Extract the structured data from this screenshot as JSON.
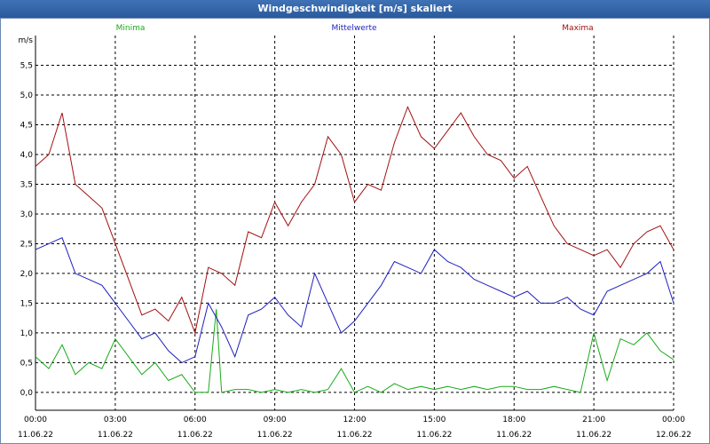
{
  "window": {
    "title": "Windgeschwindigkeit [m/s] skaliert"
  },
  "chart_data": {
    "type": "line",
    "title": "Windgeschwindigkeit [m/s] skaliert",
    "ylabel": "m/s",
    "xlabel": "",
    "ylim": [
      -0.3,
      6.0
    ],
    "xlim": [
      0,
      24
    ],
    "grid": true,
    "legend_position": "top",
    "y_ticks": [
      0.0,
      0.5,
      1.0,
      1.5,
      2.0,
      2.5,
      3.0,
      3.5,
      4.0,
      4.5,
      5.0,
      5.5
    ],
    "y_tick_labels": [
      "0,0",
      "0,5",
      "1,0",
      "1,5",
      "2,0",
      "2,5",
      "3,0",
      "3,5",
      "4,0",
      "4,5",
      "5,0",
      "5,5"
    ],
    "x_ticks": [
      0,
      3,
      6,
      9,
      12,
      15,
      18,
      21,
      24
    ],
    "x_tick_times": [
      "00:00",
      "03:00",
      "06:00",
      "09:00",
      "12:00",
      "15:00",
      "18:00",
      "21:00",
      "00:00"
    ],
    "x_tick_dates": [
      "11.06.22",
      "11.06.22",
      "11.06.22",
      "11.06.22",
      "11.06.22",
      "11.06.22",
      "11.06.22",
      "11.06.22",
      "12.06.22"
    ],
    "series": [
      {
        "name": "Minima",
        "color": "#1aaa1a",
        "x": [
          0,
          0.5,
          1,
          1.5,
          2,
          2.5,
          3,
          3.5,
          4,
          4.5,
          5,
          5.5,
          6,
          6.5,
          6.8,
          7,
          7.5,
          8,
          8.5,
          9,
          9.5,
          10,
          10.5,
          11,
          11.5,
          12,
          12.5,
          13,
          13.5,
          14,
          14.5,
          15,
          15.5,
          16,
          16.5,
          17,
          17.5,
          18,
          18.5,
          19,
          19.5,
          20,
          20.5,
          21,
          21.5,
          22,
          22.5,
          23,
          23.5,
          24
        ],
        "values": [
          0.6,
          0.4,
          0.8,
          0.3,
          0.5,
          0.4,
          0.9,
          0.6,
          0.3,
          0.5,
          0.2,
          0.3,
          0.0,
          0.0,
          1.4,
          0.0,
          0.05,
          0.05,
          0.0,
          0.05,
          0.0,
          0.05,
          0.0,
          0.05,
          0.4,
          0.0,
          0.1,
          0.0,
          0.15,
          0.05,
          0.1,
          0.05,
          0.1,
          0.05,
          0.1,
          0.05,
          0.1,
          0.1,
          0.05,
          0.05,
          0.1,
          0.05,
          0.0,
          1.0,
          0.2,
          0.9,
          0.8,
          1.0,
          0.7,
          0.55
        ]
      },
      {
        "name": "Mittelwerte",
        "color": "#1f1fc0",
        "x": [
          0,
          0.5,
          1,
          1.5,
          2,
          2.5,
          3,
          3.5,
          4,
          4.5,
          5,
          5.5,
          6,
          6.5,
          7,
          7.5,
          8,
          8.5,
          9,
          9.5,
          10,
          10.5,
          11,
          11.5,
          12,
          12.5,
          13,
          13.5,
          14,
          14.5,
          15,
          15.5,
          16,
          16.5,
          17,
          17.5,
          18,
          18.5,
          19,
          19.5,
          20,
          20.5,
          21,
          21.5,
          22,
          22.5,
          23,
          23.5,
          24
        ],
        "values": [
          2.4,
          2.5,
          2.6,
          2.0,
          1.9,
          1.8,
          1.5,
          1.2,
          0.9,
          1.0,
          0.7,
          0.5,
          0.6,
          1.5,
          1.1,
          0.6,
          1.3,
          1.4,
          1.6,
          1.3,
          1.1,
          2.0,
          1.5,
          1.0,
          1.2,
          1.5,
          1.8,
          2.2,
          2.1,
          2.0,
          2.4,
          2.2,
          2.1,
          1.9,
          1.8,
          1.7,
          1.6,
          1.7,
          1.5,
          1.5,
          1.6,
          1.4,
          1.3,
          1.7,
          1.8,
          1.9,
          2.0,
          2.2,
          1.5
        ]
      },
      {
        "name": "Maxima",
        "color": "#a31010",
        "x": [
          0,
          0.5,
          1,
          1.5,
          2,
          2.5,
          3,
          3.5,
          4,
          4.5,
          5,
          5.5,
          6,
          6.5,
          7,
          7.5,
          8,
          8.5,
          9,
          9.5,
          10,
          10.5,
          11,
          11.5,
          12,
          12.5,
          13,
          13.5,
          14,
          14.5,
          15,
          15.5,
          16,
          16.5,
          17,
          17.5,
          18,
          18.5,
          19,
          19.5,
          20,
          20.5,
          21,
          21.5,
          22,
          22.5,
          23,
          23.5,
          24
        ],
        "values": [
          3.8,
          4.0,
          4.7,
          3.5,
          3.3,
          3.1,
          2.5,
          1.9,
          1.3,
          1.4,
          1.2,
          1.6,
          1.0,
          2.1,
          2.0,
          1.8,
          2.7,
          2.6,
          3.2,
          2.8,
          3.2,
          3.5,
          4.3,
          4.0,
          3.2,
          3.5,
          3.4,
          4.2,
          4.8,
          4.3,
          4.1,
          4.4,
          4.7,
          4.3,
          4.0,
          3.9,
          3.6,
          3.8,
          3.3,
          2.8,
          2.5,
          2.4,
          2.3,
          2.4,
          2.1,
          2.5,
          2.7,
          2.8,
          2.4
        ]
      }
    ]
  }
}
